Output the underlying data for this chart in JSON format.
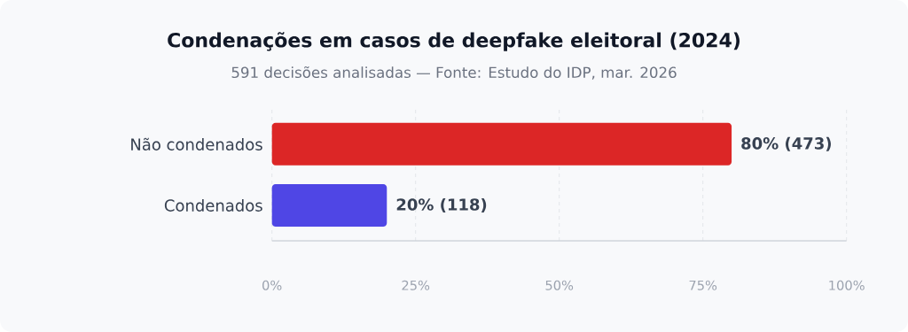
{
  "chart_data": {
    "type": "bar",
    "orientation": "horizontal",
    "title": "Condenações em casos de deepfake eleitoral (2024)",
    "subtitle": "591 decisões analisadas — Fonte: Estudo do IDP, mar. 2026",
    "categories": [
      "Não condenados",
      "Condenados"
    ],
    "values": [
      80,
      20
    ],
    "colors": [
      "#dc2626",
      "#4f46e5"
    ],
    "value_labels": [
      "80% (473)",
      "20% (118)"
    ],
    "xlim": [
      0,
      100
    ],
    "xticks": [
      {
        "value": 0,
        "label": "0%"
      },
      {
        "value": 25,
        "label": "25%"
      },
      {
        "value": 50,
        "label": "50%"
      },
      {
        "value": 75,
        "label": "75%"
      },
      {
        "value": 100,
        "label": "100%"
      }
    ],
    "grid": "x"
  }
}
